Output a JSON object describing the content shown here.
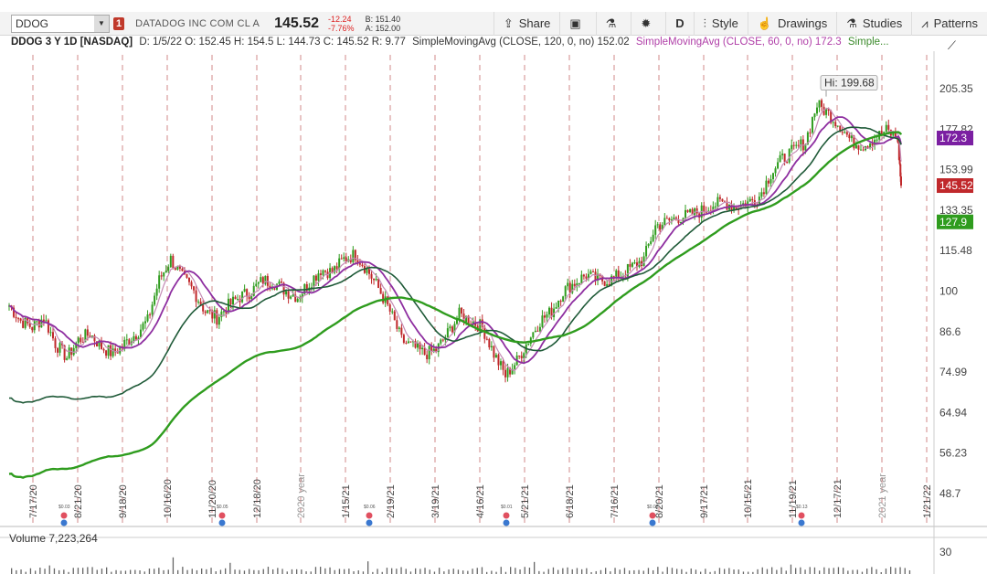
{
  "toolbar": {
    "symbol": "DDOG",
    "badge": "1",
    "company": "DATADOG INC COM CL A",
    "last": "145.52",
    "change": "-12.24",
    "change_pct": "-7.76%",
    "bid": "B: 151.40",
    "ask": "A: 152.00",
    "share": "Share",
    "period": "D",
    "style": "Style",
    "drawings": "Drawings",
    "studies": "Studies",
    "patterns": "Patterns"
  },
  "study_line": {
    "title": "DDOG 3 Y 1D [NASDAQ]",
    "ohlc": "D: 1/5/22  O: 152.45  H: 154.5  L: 144.73  C: 145.52  R: 9.77",
    "sma120": "SimpleMovingAvg (CLOSE, 120, 0, no) 152.02",
    "sma60": "SimpleMovingAvg (CLOSE, 60, 0, no) 172.3",
    "more": "Simple..."
  },
  "colors": {
    "sma20": "#c48ab4",
    "sma60": "#8e2ea0",
    "sma120": "#1f5a38",
    "sma200": "#2f9c1e",
    "up": "#2f9c1e",
    "down": "#c0282b",
    "grid": "#d08a8a"
  },
  "chart_data": {
    "type": "line",
    "title": "DDOG 3 Y 1D [NASDAQ]",
    "y_scale": "log",
    "y_ticks": [
      "205.35",
      "177.82",
      "153.99",
      "133.35",
      "115.48",
      "100",
      "86.6",
      "74.99",
      "64.94",
      "56.23",
      "48.7"
    ],
    "x_ticks": [
      "7/17/20",
      "8/21/20",
      "9/18/20",
      "10/16/20",
      "11/20/20",
      "12/18/20",
      "2020 year",
      "1/15/21",
      "2/19/21",
      "3/19/21",
      "4/16/21",
      "5/21/21",
      "6/18/21",
      "7/16/21",
      "8/20/21",
      "9/17/21",
      "10/15/21",
      "11/19/21",
      "12/17/21",
      "2021 year",
      "1/21/22"
    ],
    "high_label": "Hi: 199.68",
    "price_labels": [
      {
        "text": "172.3",
        "value": 172.3,
        "color": "#7b1fa2"
      },
      {
        "text": "145.52",
        "value": 145.52,
        "color": "#c0282b"
      },
      {
        "text": "127.9",
        "value": 127.9,
        "color": "#2f9c1e"
      }
    ],
    "event_labels": [
      "$0.03",
      "$0.05",
      "$0.06",
      "$0.01",
      "$0.03",
      "$0.13"
    ],
    "price_series": [
      [
        "2020-07-13",
        95
      ],
      [
        "2020-07-20",
        90
      ],
      [
        "2020-07-27",
        88
      ],
      [
        "2020-08-03",
        91
      ],
      [
        "2020-08-10",
        83
      ],
      [
        "2020-08-17",
        79
      ],
      [
        "2020-08-24",
        84
      ],
      [
        "2020-08-31",
        86
      ],
      [
        "2020-09-07",
        82
      ],
      [
        "2020-09-14",
        80
      ],
      [
        "2020-09-21",
        83
      ],
      [
        "2020-09-28",
        86
      ],
      [
        "2020-10-05",
        90
      ],
      [
        "2020-10-12",
        104
      ],
      [
        "2020-10-19",
        112
      ],
      [
        "2020-10-26",
        105
      ],
      [
        "2020-11-02",
        100
      ],
      [
        "2020-11-09",
        93
      ],
      [
        "2020-11-16",
        91
      ],
      [
        "2020-11-23",
        95
      ],
      [
        "2020-11-30",
        98
      ],
      [
        "2020-12-07",
        100
      ],
      [
        "2020-12-14",
        104
      ],
      [
        "2020-12-21",
        103
      ],
      [
        "2020-12-28",
        100
      ],
      [
        "2021-01-04",
        98
      ],
      [
        "2021-01-11",
        103
      ],
      [
        "2021-01-18",
        108
      ],
      [
        "2021-01-25",
        107
      ],
      [
        "2021-02-01",
        112
      ],
      [
        "2021-02-08",
        114
      ],
      [
        "2021-02-15",
        108
      ],
      [
        "2021-02-22",
        101
      ],
      [
        "2021-03-01",
        93
      ],
      [
        "2021-03-08",
        84
      ],
      [
        "2021-03-15",
        82
      ],
      [
        "2021-03-22",
        80
      ],
      [
        "2021-03-29",
        81
      ],
      [
        "2021-04-05",
        86
      ],
      [
        "2021-04-12",
        92
      ],
      [
        "2021-04-19",
        90
      ],
      [
        "2021-04-26",
        88
      ],
      [
        "2021-05-03",
        80
      ],
      [
        "2021-05-10",
        74
      ],
      [
        "2021-05-17",
        78
      ],
      [
        "2021-05-24",
        84
      ],
      [
        "2021-05-31",
        90
      ],
      [
        "2021-06-07",
        93
      ],
      [
        "2021-06-14",
        100
      ],
      [
        "2021-06-21",
        103
      ],
      [
        "2021-06-28",
        106
      ],
      [
        "2021-07-05",
        104
      ],
      [
        "2021-07-12",
        104
      ],
      [
        "2021-07-19",
        106
      ],
      [
        "2021-07-26",
        109
      ],
      [
        "2021-08-02",
        112
      ],
      [
        "2021-08-09",
        126
      ],
      [
        "2021-08-16",
        128
      ],
      [
        "2021-08-23",
        130
      ],
      [
        "2021-08-30",
        131
      ],
      [
        "2021-09-06",
        133
      ],
      [
        "2021-09-13",
        136
      ],
      [
        "2021-09-20",
        137
      ],
      [
        "2021-09-27",
        135
      ],
      [
        "2021-10-04",
        137
      ],
      [
        "2021-10-11",
        140
      ],
      [
        "2021-10-18",
        152
      ],
      [
        "2021-10-25",
        160
      ],
      [
        "2021-11-01",
        165
      ],
      [
        "2021-11-08",
        170
      ],
      [
        "2021-11-15",
        194
      ],
      [
        "2021-11-22",
        188
      ],
      [
        "2021-11-29",
        180
      ],
      [
        "2021-12-06",
        170
      ],
      [
        "2021-12-13",
        168
      ],
      [
        "2021-12-20",
        172
      ],
      [
        "2021-12-27",
        177
      ],
      [
        "2022-01-03",
        172
      ],
      [
        "2022-01-05",
        145.52
      ]
    ],
    "series": [
      {
        "values": [
          [
            0,
            74
          ],
          [
            0.08,
            81
          ],
          [
            0.2,
            87
          ],
          [
            0.33,
            93
          ],
          [
            0.5,
            100
          ],
          [
            0.62,
            97
          ],
          [
            0.78,
            88
          ],
          [
            0.86,
            95
          ],
          [
            0.92,
            100
          ],
          [
            1,
            99
          ]
        ]
      }
    ],
    "legend": "none"
  }
}
